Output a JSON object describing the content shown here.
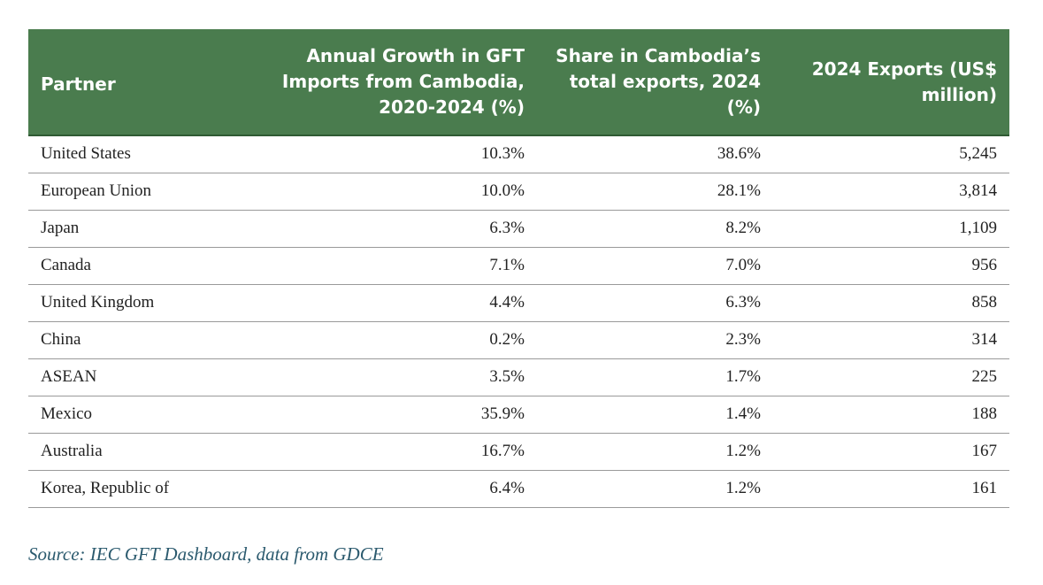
{
  "table": {
    "headers": {
      "partner": "Partner",
      "growth": "Annual Growth in GFT Imports from Cambodia, 2020-2024 (%)",
      "share": "Share in Cambodia’s total exports, 2024 (%)",
      "exports": "2024 Exports (US$ million)"
    },
    "rows": [
      {
        "partner": "United States",
        "growth": "10.3%",
        "share": "38.6%",
        "exports": "5,245"
      },
      {
        "partner": "European Union",
        "growth": "10.0%",
        "share": "28.1%",
        "exports": "3,814"
      },
      {
        "partner": "Japan",
        "growth": "6.3%",
        "share": "8.2%",
        "exports": "1,109"
      },
      {
        "partner": "Canada",
        "growth": "7.1%",
        "share": "7.0%",
        "exports": "956"
      },
      {
        "partner": "United Kingdom",
        "growth": "4.4%",
        "share": "6.3%",
        "exports": "858"
      },
      {
        "partner": "China",
        "growth": "0.2%",
        "share": "2.3%",
        "exports": "314"
      },
      {
        "partner": "ASEAN",
        "growth": "3.5%",
        "share": "1.7%",
        "exports": "225"
      },
      {
        "partner": "Mexico",
        "growth": "35.9%",
        "share": "1.4%",
        "exports": "188"
      },
      {
        "partner": "Australia",
        "growth": "16.7%",
        "share": "1.2%",
        "exports": "167"
      },
      {
        "partner": "Korea, Republic of",
        "growth": "6.4%",
        "share": "1.2%",
        "exports": "161"
      }
    ]
  },
  "source": "Source: IEC GFT Dashboard, data from GDCE",
  "colors": {
    "header_bg": "#4a7c4e",
    "header_text": "#ffffff",
    "source_text": "#2b5a6e"
  }
}
